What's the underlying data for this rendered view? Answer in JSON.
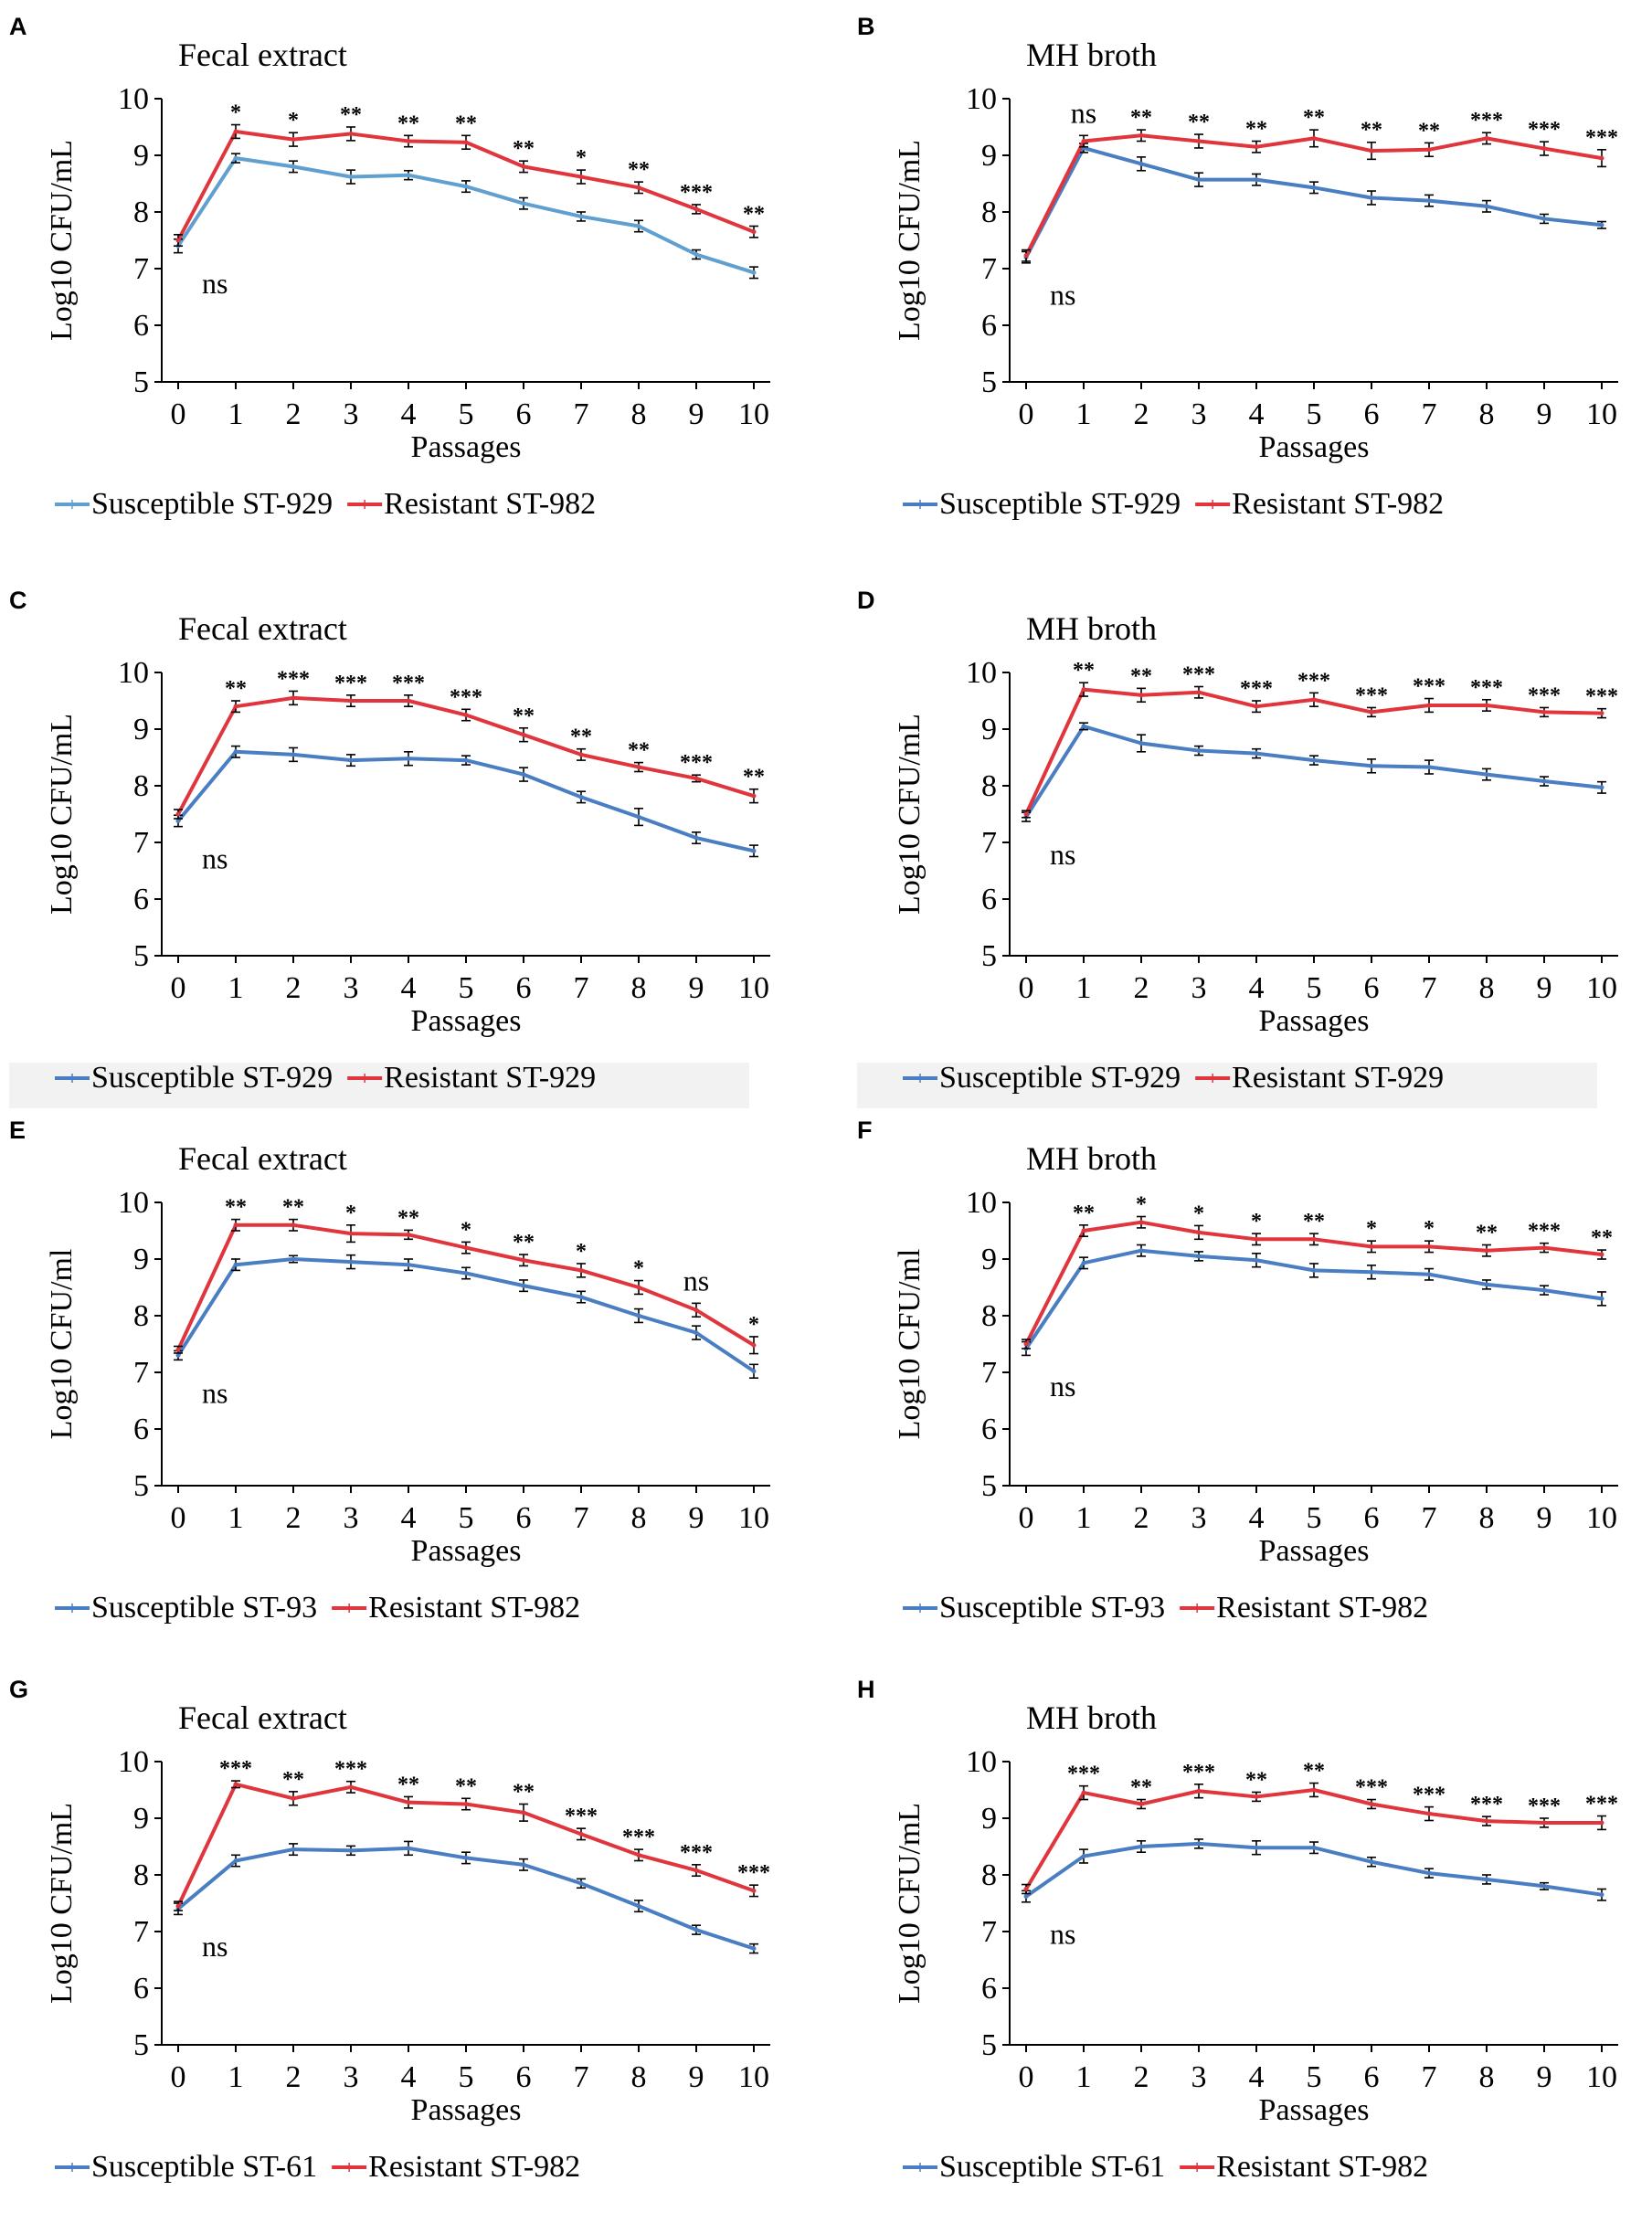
{
  "colors": {
    "susceptible": "#4a7ec2",
    "susceptible_alt": "#5fa0d0",
    "resistant": "#e0353d",
    "legend_bg": "#f2f2f2"
  },
  "chart_data": [
    {
      "panel": "A",
      "type": "line",
      "title": "Fecal extract",
      "xlabel": "Passages",
      "ylabel": "Log10 CFU/mL",
      "x": [
        0,
        1,
        2,
        3,
        4,
        5,
        6,
        7,
        8,
        9,
        10
      ],
      "ylim": [
        5,
        10
      ],
      "yticks": [
        5,
        6,
        7,
        8,
        9,
        10
      ],
      "series": [
        {
          "name": "Susceptible ST-929",
          "role": "susceptible",
          "values": [
            7.4,
            8.95,
            8.8,
            8.62,
            8.65,
            8.45,
            8.15,
            7.92,
            7.75,
            7.25,
            6.93
          ],
          "errors": [
            0.12,
            0.08,
            0.1,
            0.12,
            0.08,
            0.1,
            0.1,
            0.08,
            0.1,
            0.08,
            0.1
          ]
        },
        {
          "name": "Resistant ST-982",
          "role": "resistant",
          "values": [
            7.5,
            9.42,
            9.28,
            9.38,
            9.25,
            9.23,
            8.8,
            8.62,
            8.43,
            8.05,
            7.65
          ],
          "errors": [
            0.1,
            0.12,
            0.12,
            0.12,
            0.1,
            0.12,
            0.1,
            0.12,
            0.1,
            0.08,
            0.1
          ]
        }
      ],
      "significance": [
        "",
        "*",
        "*",
        "**",
        "**",
        "**",
        "**",
        "*",
        "**",
        "***",
        "**"
      ],
      "ns_label": "ns"
    },
    {
      "panel": "B",
      "type": "line",
      "title": "MH broth",
      "xlabel": "Passages",
      "ylabel": "Log10 CFU/mL",
      "x": [
        0,
        1,
        2,
        3,
        4,
        5,
        6,
        7,
        8,
        9,
        10
      ],
      "ylim": [
        5,
        10
      ],
      "yticks": [
        5,
        6,
        7,
        8,
        9,
        10
      ],
      "series": [
        {
          "name": "Susceptible ST-929",
          "role": "susceptible",
          "values": [
            7.2,
            9.13,
            8.85,
            8.57,
            8.57,
            8.43,
            8.25,
            8.2,
            8.1,
            7.88,
            7.77
          ],
          "errors": [
            0.1,
            0.08,
            0.12,
            0.12,
            0.1,
            0.1,
            0.12,
            0.1,
            0.1,
            0.08,
            0.06
          ]
        },
        {
          "name": "Resistant ST-982",
          "role": "resistant",
          "values": [
            7.23,
            9.25,
            9.35,
            9.25,
            9.15,
            9.3,
            9.08,
            9.1,
            9.3,
            9.12,
            8.95
          ],
          "errors": [
            0.1,
            0.1,
            0.1,
            0.12,
            0.1,
            0.15,
            0.15,
            0.12,
            0.1,
            0.12,
            0.15
          ]
        }
      ],
      "significance": [
        "",
        "ns",
        "**",
        "**",
        "**",
        "**",
        "**",
        "**",
        "***",
        "***",
        "***"
      ],
      "ns_label": "ns"
    },
    {
      "panel": "C",
      "type": "line",
      "title": "Fecal extract",
      "xlabel": "Passages",
      "ylabel": "Log10 CFU/mL",
      "x": [
        0,
        1,
        2,
        3,
        4,
        5,
        6,
        7,
        8,
        9,
        10
      ],
      "ylim": [
        5,
        10
      ],
      "yticks": [
        5,
        6,
        7,
        8,
        9,
        10
      ],
      "series": [
        {
          "name": "Susceptible ST-929",
          "role": "susceptible",
          "values": [
            7.38,
            8.6,
            8.55,
            8.45,
            8.48,
            8.45,
            8.2,
            7.8,
            7.45,
            7.08,
            6.85
          ],
          "errors": [
            0.1,
            0.1,
            0.12,
            0.1,
            0.12,
            0.08,
            0.12,
            0.1,
            0.15,
            0.1,
            0.1
          ]
        },
        {
          "name": "Resistant ST-929",
          "role": "resistant",
          "values": [
            7.5,
            9.4,
            9.55,
            9.5,
            9.5,
            9.25,
            8.9,
            8.55,
            8.33,
            8.13,
            7.82
          ],
          "errors": [
            0.08,
            0.1,
            0.12,
            0.1,
            0.1,
            0.1,
            0.12,
            0.1,
            0.08,
            0.06,
            0.12
          ]
        }
      ],
      "significance": [
        "",
        "**",
        "***",
        "***",
        "***",
        "***",
        "**",
        "**",
        "**",
        "***",
        "**"
      ],
      "ns_label": "ns"
    },
    {
      "panel": "D",
      "type": "line",
      "title": "MH broth",
      "xlabel": "Passages",
      "ylabel": "Log10 CFU/mL",
      "x": [
        0,
        1,
        2,
        3,
        4,
        5,
        6,
        7,
        8,
        9,
        10
      ],
      "ylim": [
        5,
        10
      ],
      "yticks": [
        5,
        6,
        7,
        8,
        9,
        10
      ],
      "series": [
        {
          "name": "Susceptible ST-929",
          "role": "susceptible",
          "values": [
            7.45,
            9.05,
            8.75,
            8.62,
            8.57,
            8.45,
            8.35,
            8.33,
            8.2,
            8.08,
            7.97
          ],
          "errors": [
            0.08,
            0.06,
            0.15,
            0.08,
            0.08,
            0.08,
            0.12,
            0.12,
            0.1,
            0.08,
            0.1
          ]
        },
        {
          "name": "Resistant ST-929",
          "role": "resistant",
          "values": [
            7.5,
            9.7,
            9.6,
            9.65,
            9.4,
            9.52,
            9.3,
            9.42,
            9.42,
            9.3,
            9.28
          ],
          "errors": [
            0.06,
            0.12,
            0.12,
            0.1,
            0.1,
            0.12,
            0.08,
            0.12,
            0.1,
            0.08,
            0.08
          ]
        }
      ],
      "significance": [
        "",
        "**",
        "**",
        "***",
        "***",
        "***",
        "***",
        "***",
        "***",
        "***",
        "***"
      ],
      "ns_label": "ns"
    },
    {
      "panel": "E",
      "type": "line",
      "title": "Fecal extract",
      "xlabel": "Passages",
      "ylabel": "Log10 CFU/ml",
      "x": [
        0,
        1,
        2,
        3,
        4,
        5,
        6,
        7,
        8,
        9,
        10
      ],
      "ylim": [
        5,
        10
      ],
      "yticks": [
        5,
        6,
        7,
        8,
        9,
        10
      ],
      "series": [
        {
          "name": "Susceptible ST-93",
          "role": "susceptible",
          "values": [
            7.3,
            8.9,
            9.0,
            8.95,
            8.9,
            8.75,
            8.53,
            8.33,
            8.0,
            7.7,
            7.02
          ],
          "errors": [
            0.08,
            0.1,
            0.06,
            0.12,
            0.1,
            0.1,
            0.1,
            0.1,
            0.12,
            0.12,
            0.12
          ]
        },
        {
          "name": "Resistant ST-982",
          "role": "resistant",
          "values": [
            7.4,
            9.6,
            9.6,
            9.45,
            9.43,
            9.2,
            8.98,
            8.8,
            8.5,
            8.1,
            7.48
          ],
          "errors": [
            0.06,
            0.1,
            0.1,
            0.15,
            0.08,
            0.1,
            0.1,
            0.12,
            0.12,
            0.12,
            0.15
          ]
        }
      ],
      "significance": [
        "",
        "**",
        "**",
        "*",
        "**",
        "*",
        "**",
        "*",
        "*",
        "ns",
        "*"
      ],
      "ns_label": "ns"
    },
    {
      "panel": "F",
      "type": "line",
      "title": "MH broth",
      "xlabel": "Passages",
      "ylabel": "Log10 CFU/ml",
      "x": [
        0,
        1,
        2,
        3,
        4,
        5,
        6,
        7,
        8,
        9,
        10
      ],
      "ylim": [
        5,
        10
      ],
      "yticks": [
        5,
        6,
        7,
        8,
        9,
        10
      ],
      "series": [
        {
          "name": "Susceptible ST-93",
          "role": "susceptible",
          "values": [
            7.42,
            8.93,
            9.15,
            9.05,
            8.98,
            8.8,
            8.77,
            8.73,
            8.55,
            8.45,
            8.3
          ],
          "errors": [
            0.12,
            0.1,
            0.1,
            0.08,
            0.12,
            0.12,
            0.12,
            0.1,
            0.08,
            0.08,
            0.12
          ]
        },
        {
          "name": "Resistant ST-982",
          "role": "resistant",
          "values": [
            7.5,
            9.5,
            9.65,
            9.47,
            9.35,
            9.35,
            9.22,
            9.22,
            9.15,
            9.2,
            9.08
          ],
          "errors": [
            0.08,
            0.1,
            0.1,
            0.12,
            0.1,
            0.1,
            0.1,
            0.1,
            0.1,
            0.08,
            0.08
          ]
        }
      ],
      "significance": [
        "",
        "**",
        "*",
        "*",
        "*",
        "**",
        "*",
        "*",
        "**",
        "***",
        "**"
      ],
      "ns_label": "ns"
    },
    {
      "panel": "G",
      "type": "line",
      "title": "Fecal extract",
      "xlabel": "Passages",
      "ylabel": "Log10 CFU/mL",
      "x": [
        0,
        1,
        2,
        3,
        4,
        5,
        6,
        7,
        8,
        9,
        10
      ],
      "ylim": [
        5,
        10
      ],
      "yticks": [
        5,
        6,
        7,
        8,
        9,
        10
      ],
      "series": [
        {
          "name": "Susceptible ST-61",
          "role": "susceptible",
          "values": [
            7.4,
            8.25,
            8.45,
            8.43,
            8.47,
            8.3,
            8.18,
            7.85,
            7.45,
            7.03,
            6.7
          ],
          "errors": [
            0.1,
            0.1,
            0.1,
            0.08,
            0.12,
            0.1,
            0.1,
            0.08,
            0.1,
            0.08,
            0.08
          ]
        },
        {
          "name": "Resistant ST-982",
          "role": "resistant",
          "values": [
            7.45,
            9.6,
            9.35,
            9.55,
            9.28,
            9.25,
            9.1,
            8.72,
            8.35,
            8.08,
            7.72
          ],
          "errors": [
            0.08,
            0.06,
            0.12,
            0.1,
            0.1,
            0.1,
            0.15,
            0.1,
            0.1,
            0.1,
            0.1
          ]
        }
      ],
      "significance": [
        "",
        "***",
        "**",
        "***",
        "**",
        "**",
        "**",
        "***",
        "***",
        "***",
        "***"
      ],
      "ns_label": "ns"
    },
    {
      "panel": "H",
      "type": "line",
      "title": "MH broth",
      "xlabel": "Passages",
      "ylabel": "Log10 CFU/mL",
      "x": [
        0,
        1,
        2,
        3,
        4,
        5,
        6,
        7,
        8,
        9,
        10
      ],
      "ylim": [
        5,
        10
      ],
      "yticks": [
        5,
        6,
        7,
        8,
        9,
        10
      ],
      "series": [
        {
          "name": "Susceptible ST-61",
          "role": "susceptible",
          "values": [
            7.62,
            8.33,
            8.5,
            8.55,
            8.48,
            8.48,
            8.23,
            8.03,
            7.92,
            7.8,
            7.65
          ],
          "errors": [
            0.1,
            0.12,
            0.1,
            0.08,
            0.12,
            0.1,
            0.08,
            0.08,
            0.08,
            0.06,
            0.1
          ]
        },
        {
          "name": "Resistant ST-982",
          "role": "resistant",
          "values": [
            7.75,
            9.45,
            9.25,
            9.48,
            9.38,
            9.5,
            9.25,
            9.08,
            8.95,
            8.92,
            8.92
          ],
          "errors": [
            0.08,
            0.12,
            0.08,
            0.12,
            0.08,
            0.12,
            0.08,
            0.12,
            0.08,
            0.08,
            0.12
          ]
        }
      ],
      "significance": [
        "",
        "***",
        "**",
        "***",
        "**",
        "**",
        "***",
        "***",
        "***",
        "***",
        "***"
      ],
      "ns_label": "ns"
    }
  ]
}
